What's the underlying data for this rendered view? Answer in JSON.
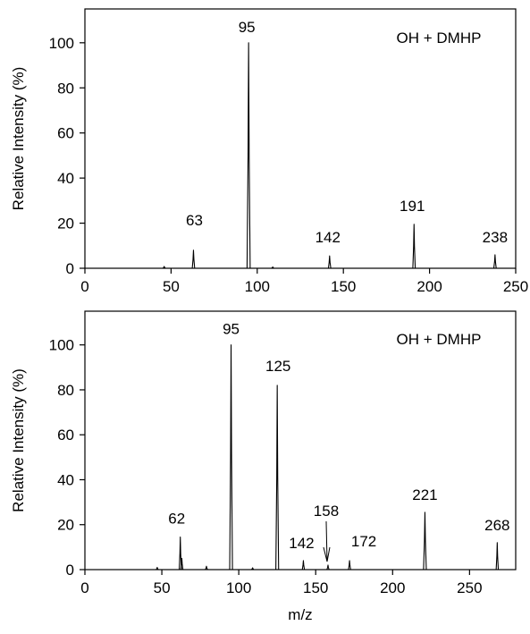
{
  "chart_data": [
    {
      "type": "line",
      "xlim": [
        0,
        250
      ],
      "ylim": [
        0,
        115
      ],
      "xticks": [
        0,
        50,
        100,
        150,
        200,
        250
      ],
      "yticks": [
        0,
        20,
        40,
        60,
        80,
        100
      ],
      "ylabel": "Relative Intensity (%)",
      "xlabel": "",
      "legend": "OH + DMHP",
      "series": [
        {
          "peaks": [
            {
              "mz": 46,
              "intensity": 0.8
            },
            {
              "mz": 63,
              "intensity": 8
            },
            {
              "mz": 95,
              "intensity": 100
            },
            {
              "mz": 109,
              "intensity": 0.6
            },
            {
              "mz": 142,
              "intensity": 5.5
            },
            {
              "mz": 191,
              "intensity": 19.5
            },
            {
              "mz": 238,
              "intensity": 6
            }
          ]
        }
      ],
      "peak_labels": [
        {
          "text": "63",
          "mz": 63,
          "intensity": 8
        },
        {
          "text": "95",
          "mz": 95,
          "intensity": 100
        },
        {
          "text": "142",
          "mz": 142,
          "intensity": 5.5
        },
        {
          "text": "191",
          "mz": 191,
          "intensity": 19.5
        },
        {
          "text": "238",
          "mz": 238,
          "intensity": 6
        }
      ]
    },
    {
      "type": "line",
      "xlim": [
        0,
        280
      ],
      "ylim": [
        0,
        115
      ],
      "xticks": [
        0,
        50,
        100,
        150,
        200,
        250
      ],
      "yticks": [
        0,
        20,
        40,
        60,
        80,
        100
      ],
      "ylabel": "Relative Intensity (%)",
      "xlabel": "m/z",
      "legend": "OH + DMHP",
      "series": [
        {
          "peaks": [
            {
              "mz": 47,
              "intensity": 1
            },
            {
              "mz": 62,
              "intensity": 14.5
            },
            {
              "mz": 63,
              "intensity": 5
            },
            {
              "mz": 79,
              "intensity": 1.5
            },
            {
              "mz": 95,
              "intensity": 100
            },
            {
              "mz": 109,
              "intensity": 0.8
            },
            {
              "mz": 125,
              "intensity": 82
            },
            {
              "mz": 142,
              "intensity": 4
            },
            {
              "mz": 158,
              "intensity": 2
            },
            {
              "mz": 172,
              "intensity": 4
            },
            {
              "mz": 221,
              "intensity": 25.5
            },
            {
              "mz": 268,
              "intensity": 12
            }
          ]
        }
      ],
      "peak_labels": [
        {
          "text": "62",
          "mz": 62,
          "intensity": 14.5
        },
        {
          "text": "95",
          "mz": 95,
          "intensity": 100
        },
        {
          "text": "125",
          "mz": 125,
          "intensity": 82
        },
        {
          "text": "142",
          "mz": 142,
          "intensity": 4
        },
        {
          "text": "158",
          "mz": 158,
          "intensity": 2,
          "arrow": true
        },
        {
          "text": "172",
          "mz": 172,
          "intensity": 4
        },
        {
          "text": "221",
          "mz": 221,
          "intensity": 25.5
        },
        {
          "text": "268",
          "mz": 268,
          "intensity": 12
        }
      ]
    }
  ]
}
